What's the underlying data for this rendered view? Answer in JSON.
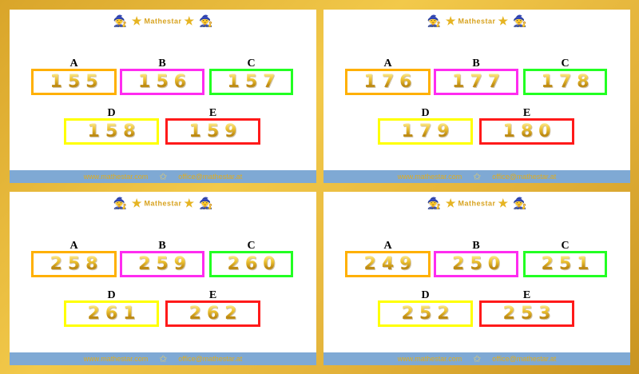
{
  "brand": "Mathestar",
  "footer": {
    "website": "www.mathestar.com",
    "email": "office@mathestar.at"
  },
  "labels": [
    "A",
    "B",
    "C",
    "D",
    "E"
  ],
  "box_colors": [
    "#ffb000",
    "#ff2cf0",
    "#22ff22",
    "#ffff00",
    "#ff1a1a"
  ],
  "cards": [
    {
      "numbers": [
        "155",
        "156",
        "157",
        "158",
        "159"
      ]
    },
    {
      "numbers": [
        "176",
        "177",
        "178",
        "179",
        "180"
      ]
    },
    {
      "numbers": [
        "258",
        "259",
        "260",
        "261",
        "262"
      ]
    },
    {
      "numbers": [
        "249",
        "250",
        "251",
        "252",
        "253"
      ]
    }
  ]
}
